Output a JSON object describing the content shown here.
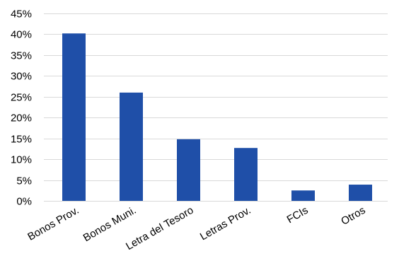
{
  "chart_data": {
    "type": "bar",
    "categories": [
      "Bonos Prov.",
      "Bonos Muni.",
      "Letra del Tesoro",
      "Letras Prov.",
      "FCIs",
      "Otros"
    ],
    "values": [
      40.2,
      26.0,
      14.8,
      12.7,
      2.5,
      3.9
    ],
    "title": "",
    "xlabel": "",
    "ylabel": "",
    "ylim": [
      0,
      45
    ],
    "yticks": [
      0,
      5,
      10,
      15,
      20,
      25,
      30,
      35,
      40,
      45
    ],
    "ytick_labels": [
      "0%",
      "5%",
      "10%",
      "15%",
      "20%",
      "25%",
      "30%",
      "35%",
      "40%",
      "45%"
    ],
    "grid": true,
    "legend": "none",
    "bar_color": "#1f4fa8"
  }
}
